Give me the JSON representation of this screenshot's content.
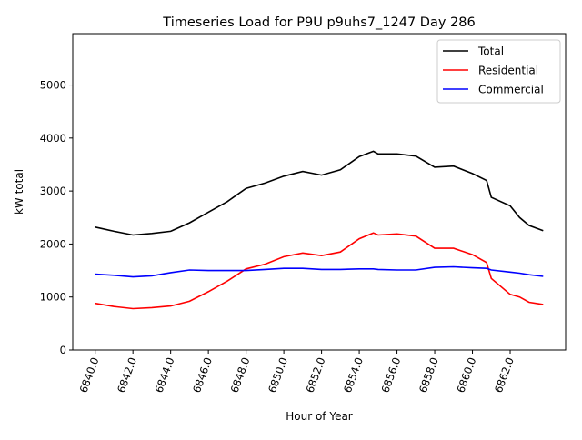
{
  "chart_data": {
    "type": "line",
    "title": "Timeseries Load for P9U p9uhs7_1247  Day 286",
    "xlabel": "Hour of Year",
    "ylabel": "kW total",
    "xlim": [
      6838.81,
      6864.94
    ],
    "ylim": [
      0,
      5970
    ],
    "xticks": [
      "6840.0",
      "6842.0",
      "6844.0",
      "6846.0",
      "6848.0",
      "6850.0",
      "6852.0",
      "6854.0",
      "6856.0",
      "6858.0",
      "6860.0",
      "6862.0"
    ],
    "xtick_values": [
      6840,
      6842,
      6844,
      6846,
      6848,
      6850,
      6852,
      6854,
      6856,
      6858,
      6860,
      6862
    ],
    "yticks": [
      "0",
      "1000",
      "2000",
      "3000",
      "4000",
      "5000"
    ],
    "ytick_values": [
      0,
      1000,
      2000,
      3000,
      4000,
      5000
    ],
    "grid": false,
    "legend_position": "top-right",
    "x": [
      6840,
      6841,
      6842,
      6843,
      6844,
      6845,
      6846,
      6847,
      6848,
      6849,
      6850,
      6851,
      6852,
      6853,
      6854,
      6854.75,
      6855,
      6856,
      6857,
      6858,
      6859,
      6860,
      6860.75,
      6861,
      6862,
      6862.5,
      6863,
      6863.75
    ],
    "series": [
      {
        "name": "Total",
        "color": "#000000",
        "values": [
          2320,
          2240,
          2170,
          2200,
          2240,
          2400,
          2600,
          2800,
          3050,
          3150,
          3280,
          3370,
          3300,
          3400,
          3650,
          3750,
          3700,
          3700,
          3660,
          3450,
          3470,
          3330,
          3200,
          2880,
          2720,
          2500,
          2350,
          2250
        ]
      },
      {
        "name": "Residential",
        "color": "#ff0000",
        "values": [
          880,
          820,
          780,
          800,
          830,
          920,
          1100,
          1300,
          1530,
          1620,
          1760,
          1830,
          1780,
          1850,
          2100,
          2210,
          2170,
          2190,
          2150,
          1920,
          1920,
          1800,
          1650,
          1350,
          1050,
          1000,
          900,
          860
        ]
      },
      {
        "name": "Commercial",
        "color": "#0000ff",
        "values": [
          1430,
          1410,
          1380,
          1400,
          1460,
          1510,
          1500,
          1500,
          1500,
          1520,
          1540,
          1540,
          1520,
          1520,
          1530,
          1530,
          1520,
          1510,
          1510,
          1560,
          1570,
          1550,
          1540,
          1510,
          1470,
          1450,
          1420,
          1390
        ]
      }
    ]
  }
}
